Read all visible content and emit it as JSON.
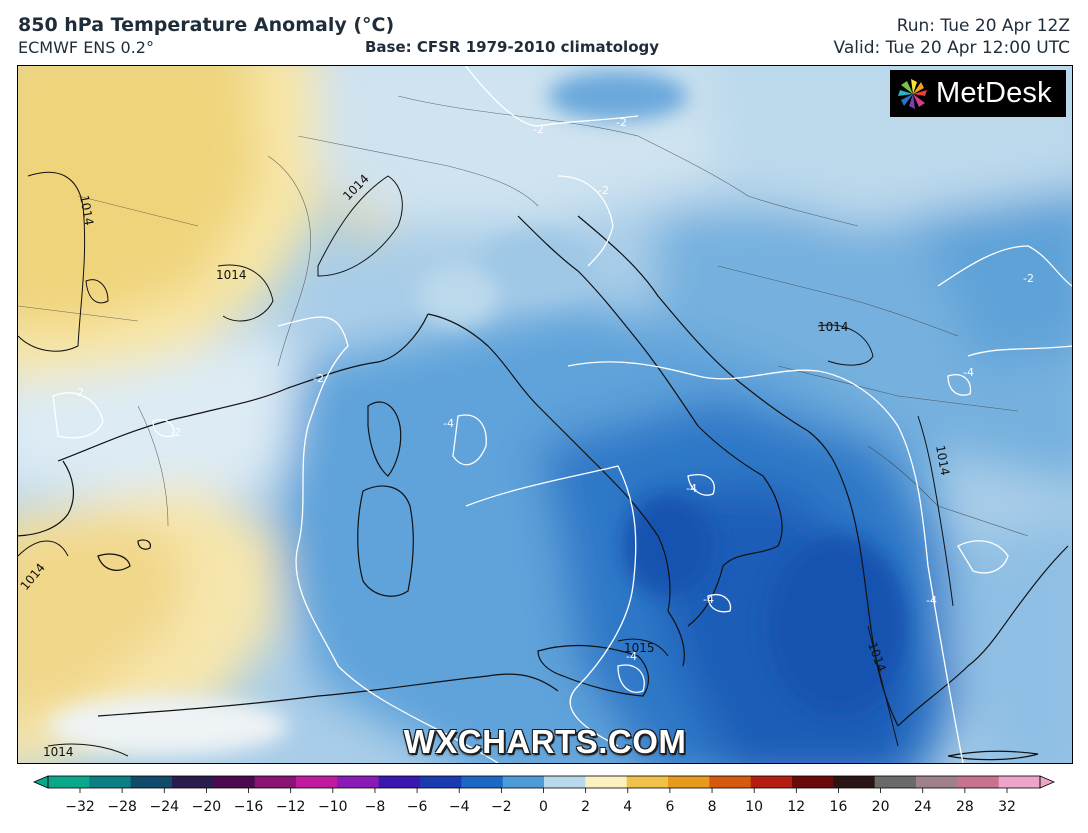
{
  "header": {
    "title": "850 hPa Temperature Anomaly (°C)",
    "model": "ECMWF ENS 0.2°",
    "base": "Base: CFSR 1979-2010 climatology",
    "run": "Run: Tue 20 Apr 12Z",
    "valid": "Valid: Tue 20 Apr 12:00 UTC"
  },
  "logo": {
    "text": "MetDesk",
    "icon": "metdesk-pinwheel-icon"
  },
  "watermark": "WXCHARTS.COM",
  "colorbar": {
    "ticks": [
      "−32",
      "−28",
      "−24",
      "−20",
      "−16",
      "−12",
      "−10",
      "−8",
      "−6",
      "−4",
      "−2",
      "0",
      "2",
      "4",
      "6",
      "8",
      "10",
      "12",
      "16",
      "20",
      "24",
      "28",
      "32"
    ],
    "colors": [
      "#0aa88a",
      "#0b7f83",
      "#124a6b",
      "#2a1d4e",
      "#4b0a50",
      "#8a1474",
      "#c01aa0",
      "#8b1bb6",
      "#3a18b0",
      "#1a3ab0",
      "#1a68c4",
      "#4c9ad8",
      "#b8d8ec",
      "#fbf1c0",
      "#f0c24a",
      "#e79a1c",
      "#d55a10",
      "#b41d10",
      "#6a0a0a",
      "#2a1414",
      "#6a6a6a",
      "#a0808a",
      "#c7728f",
      "#eea4c8"
    ]
  },
  "map": {
    "contours_white": [
      {
        "label": "-2"
      },
      {
        "label": "-2"
      },
      {
        "label": "-2"
      },
      {
        "label": "-2"
      },
      {
        "label": "-2"
      },
      {
        "label": "-2"
      },
      {
        "label": "-2"
      },
      {
        "label": "-4"
      },
      {
        "label": "-4"
      },
      {
        "label": "-4"
      },
      {
        "label": "-4"
      },
      {
        "label": "-4"
      },
      {
        "label": "-4"
      }
    ],
    "isobars_black": [
      {
        "label": "1014"
      },
      {
        "label": "1014"
      },
      {
        "label": "1014"
      },
      {
        "label": "1014"
      },
      {
        "label": "1014"
      },
      {
        "label": "1014"
      },
      {
        "label": "1014"
      },
      {
        "label": "1014"
      },
      {
        "label": "1015"
      }
    ]
  }
}
